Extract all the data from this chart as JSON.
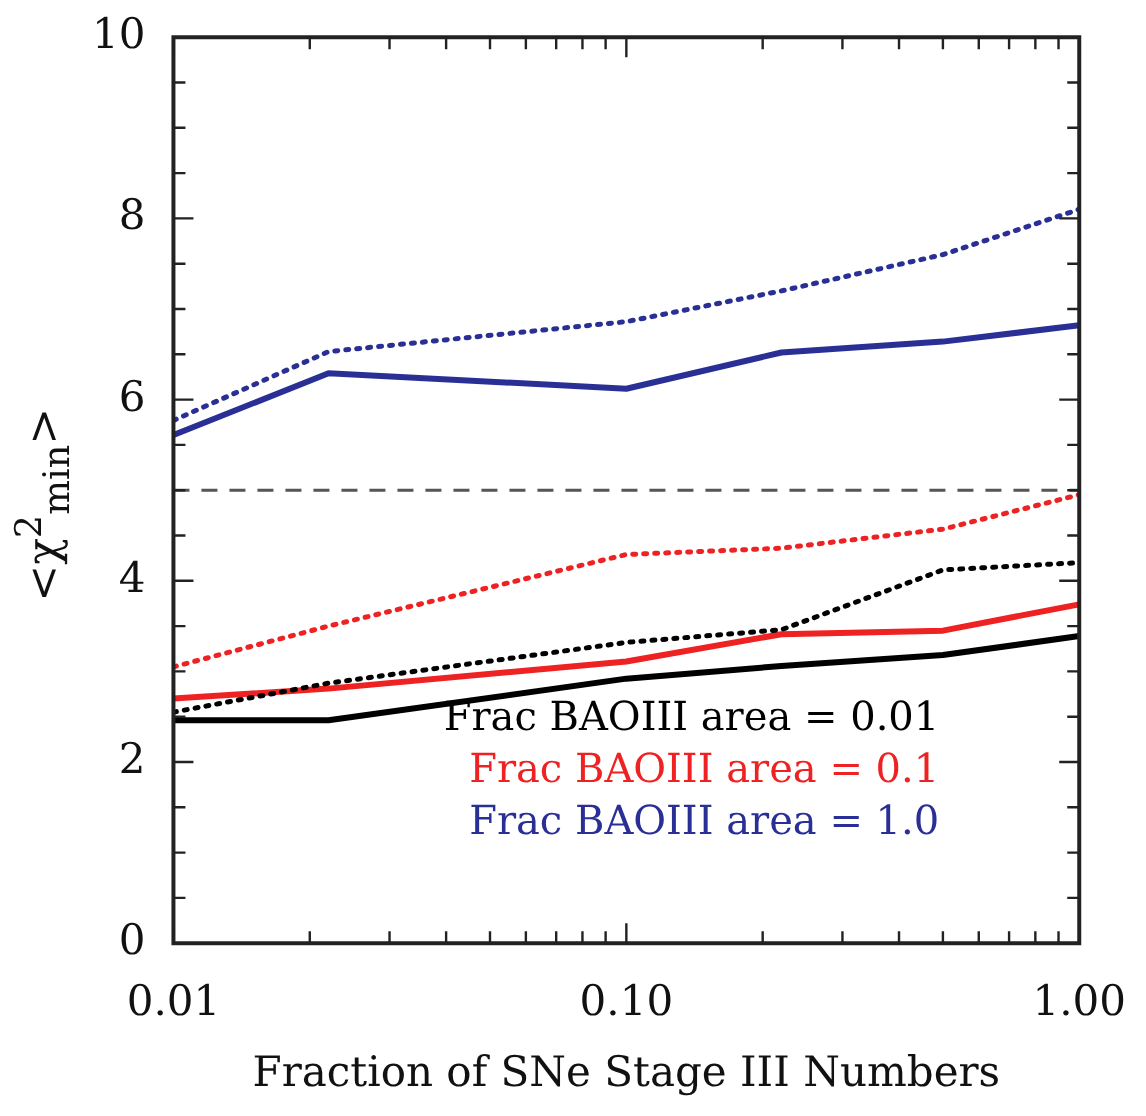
{
  "chart_data": {
    "type": "line",
    "xlabel": "Fraction of SNe Stage III Numbers",
    "ylabel": "<χ$^{2}$$_{min}$>",
    "log": "x",
    "grid": false,
    "legend": "bottom right",
    "marker": "none",
    "xlim": [
      0.01,
      1.0
    ],
    "ylim": [
      0,
      10
    ],
    "xticks": [
      {
        "value": 0.01,
        "label": "0.01"
      },
      {
        "value": 0.02,
        "label": null
      },
      {
        "value": 0.03,
        "label": null
      },
      {
        "value": 0.04,
        "label": null
      },
      {
        "value": 0.05,
        "label": null
      },
      {
        "value": 0.06,
        "label": null
      },
      {
        "value": 0.07,
        "label": null
      },
      {
        "value": 0.08,
        "label": null
      },
      {
        "value": 0.09,
        "label": null
      },
      {
        "value": 0.1,
        "label": "0.10"
      },
      {
        "value": 0.2,
        "label": null
      },
      {
        "value": 0.3,
        "label": null
      },
      {
        "value": 0.4,
        "label": null
      },
      {
        "value": 0.5,
        "label": null
      },
      {
        "value": 0.6,
        "label": null
      },
      {
        "value": 0.7,
        "label": null
      },
      {
        "value": 0.8,
        "label": null
      },
      {
        "value": 0.9,
        "label": null
      },
      {
        "value": 1.0,
        "label": "1.00"
      }
    ],
    "yticks": [
      0,
      {
        "value": 0.5,
        "label": null
      },
      {
        "value": 1,
        "label": null
      },
      {
        "value": 1.5,
        "label": null
      },
      2,
      {
        "value": 2.5,
        "label": null
      },
      {
        "value": 3,
        "label": null
      },
      {
        "value": 3.5,
        "label": null
      },
      4,
      {
        "value": 4.5,
        "label": null
      },
      {
        "value": 5,
        "label": null
      },
      {
        "value": 5.5,
        "label": null
      },
      6,
      {
        "value": 6.5,
        "label": null
      },
      {
        "value": 7,
        "label": null
      },
      {
        "value": 7.5,
        "label": null
      },
      8,
      {
        "value": 8.5,
        "label": null
      },
      {
        "value": 9,
        "label": null
      },
      {
        "value": 9.5,
        "label": null
      },
      10
    ],
    "x": [
      0.01,
      0.022,
      0.1,
      0.22,
      0.5,
      1.0
    ],
    "series": [
      {
        "name": "Frac BAOIII area = 0.01",
        "color": "#000000",
        "line_style": "solid",
        "values": [
          2.46,
          2.46,
          2.92,
          3.06,
          3.18,
          3.39
        ]
      },
      {
        "color": "#000000",
        "line_style": "dotted",
        "values": [
          2.55,
          2.87,
          3.32,
          3.46,
          4.12,
          4.2
        ]
      },
      {
        "name": "Frac BAOIII area = 0.1",
        "color": "#ee2222",
        "line_style": "solid",
        "values": [
          2.7,
          2.81,
          3.11,
          3.41,
          3.45,
          3.74
        ]
      },
      {
        "color": "#ee2222",
        "line_style": "dotted",
        "values": [
          3.05,
          3.5,
          4.29,
          4.36,
          4.57,
          4.95
        ]
      },
      {
        "name": "Frac BAOIII area = 1.0",
        "color": "#2a2f96",
        "line_style": "solid",
        "values": [
          5.61,
          6.29,
          6.12,
          6.52,
          6.64,
          6.82
        ]
      },
      {
        "color": "#2a2f96",
        "line_style": "dotted",
        "values": [
          5.77,
          6.53,
          6.86,
          7.2,
          7.6,
          8.1
        ]
      }
    ],
    "ref_lines": [
      {
        "axis": "y",
        "value": 5,
        "color": "#555555",
        "line_style": "dashed"
      }
    ]
  }
}
